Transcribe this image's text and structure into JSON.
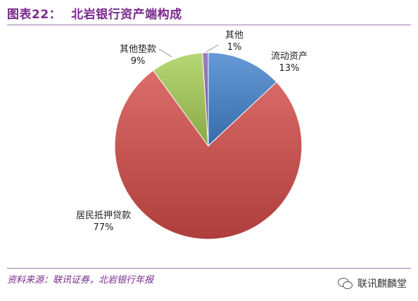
{
  "header": {
    "figure_label": "图表22：",
    "title": "北岩银行资产端构成"
  },
  "chart_data": {
    "type": "pie",
    "slices": [
      {
        "label": "流动资产",
        "value": 13,
        "value_label": "13%",
        "color": "#4a7ebb"
      },
      {
        "label": "居民抵押贷款",
        "value": 77,
        "value_label": "77%",
        "color": "#c0504d"
      },
      {
        "label": "其他垫款",
        "value": 9,
        "value_label": "9%",
        "color": "#9bbb59"
      },
      {
        "label": "其他",
        "value": 1,
        "value_label": "1%",
        "color": "#8064a2"
      }
    ],
    "start": "12 o'clock",
    "direction": "clockwise",
    "legend": "none"
  },
  "footer": {
    "source": "资料来源：联讯证券，北岩银行年报",
    "watermark": "联讯麒麟堂",
    "watermark_icon": "wechat-icon"
  }
}
